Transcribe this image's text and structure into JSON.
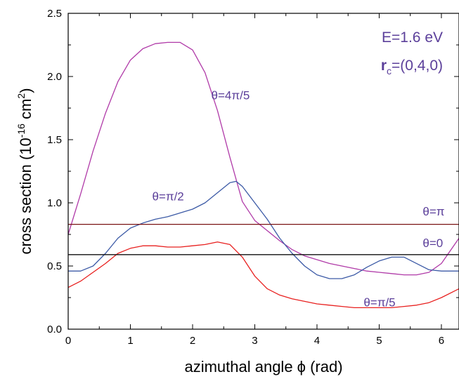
{
  "chart_data": {
    "type": "line",
    "xlabel": "azimuthal angle ϕ (rad)",
    "ylabel_parts": {
      "main": "cross section (10",
      "exp1": "-16",
      "mid": " cm",
      "exp2": "2",
      "end": ")"
    },
    "xlim": [
      0,
      6.283
    ],
    "ylim": [
      0,
      2.5
    ],
    "x_ticks": [
      "0",
      "1",
      "2",
      "3",
      "4",
      "5",
      "6"
    ],
    "y_ticks": [
      "0.0",
      "0.5",
      "1.0",
      "1.5",
      "2.0",
      "2.5"
    ],
    "info": {
      "energy": "E=1.6 eV",
      "rc_symbol": "r",
      "rc_sub": "c",
      "rc_value": "=(0,4,0)"
    },
    "series": [
      {
        "name": "θ=4π/5",
        "color": "#b03aa8",
        "x": [
          0,
          0.2,
          0.4,
          0.6,
          0.8,
          1.0,
          1.2,
          1.4,
          1.6,
          1.8,
          2.0,
          2.2,
          2.4,
          2.6,
          2.8,
          3.0,
          3.2,
          3.4,
          3.6,
          3.8,
          4.0,
          4.2,
          4.4,
          4.6,
          4.8,
          5.0,
          5.2,
          5.4,
          5.6,
          5.8,
          6.0,
          6.283
        ],
        "y": [
          0.75,
          1.07,
          1.41,
          1.71,
          1.96,
          2.13,
          2.22,
          2.26,
          2.27,
          2.27,
          2.21,
          2.03,
          1.73,
          1.36,
          1.01,
          0.86,
          0.78,
          0.7,
          0.63,
          0.58,
          0.55,
          0.52,
          0.5,
          0.48,
          0.46,
          0.45,
          0.44,
          0.43,
          0.43,
          0.45,
          0.52,
          0.72
        ]
      },
      {
        "name": "θ=π/2",
        "color": "#3c5aa6",
        "x": [
          0,
          0.2,
          0.4,
          0.6,
          0.8,
          1.0,
          1.2,
          1.4,
          1.6,
          1.8,
          2.0,
          2.2,
          2.4,
          2.6,
          2.7,
          2.8,
          3.0,
          3.2,
          3.4,
          3.6,
          3.8,
          4.0,
          4.2,
          4.4,
          4.6,
          4.8,
          5.0,
          5.2,
          5.4,
          5.6,
          5.8,
          6.0,
          6.283
        ],
        "y": [
          0.46,
          0.46,
          0.5,
          0.6,
          0.72,
          0.8,
          0.84,
          0.87,
          0.89,
          0.92,
          0.95,
          1.0,
          1.08,
          1.16,
          1.17,
          1.13,
          1.0,
          0.87,
          0.72,
          0.6,
          0.5,
          0.43,
          0.4,
          0.4,
          0.43,
          0.49,
          0.54,
          0.57,
          0.57,
          0.52,
          0.47,
          0.46,
          0.46
        ]
      },
      {
        "name": "θ=π/5",
        "color": "#e8201f",
        "x": [
          0,
          0.2,
          0.4,
          0.6,
          0.8,
          1.0,
          1.2,
          1.4,
          1.6,
          1.8,
          2.0,
          2.2,
          2.4,
          2.6,
          2.8,
          3.0,
          3.2,
          3.4,
          3.6,
          3.8,
          4.0,
          4.2,
          4.4,
          4.6,
          4.8,
          5.0,
          5.2,
          5.4,
          5.6,
          5.8,
          6.0,
          6.283
        ],
        "y": [
          0.33,
          0.38,
          0.45,
          0.52,
          0.6,
          0.64,
          0.66,
          0.66,
          0.65,
          0.65,
          0.66,
          0.67,
          0.69,
          0.67,
          0.57,
          0.42,
          0.32,
          0.27,
          0.24,
          0.22,
          0.2,
          0.19,
          0.18,
          0.17,
          0.17,
          0.17,
          0.17,
          0.18,
          0.19,
          0.21,
          0.25,
          0.32
        ]
      },
      {
        "name": "θ=π",
        "color": "#7a1414",
        "x": [
          0,
          6.283
        ],
        "y": [
          0.83,
          0.83
        ]
      },
      {
        "name": "θ=0",
        "color": "#111111",
        "x": [
          0,
          6.283
        ],
        "y": [
          0.59,
          0.59
        ]
      }
    ],
    "annotations": [
      {
        "text": "θ=4π/5",
        "at_x": 2.3,
        "at_y": 1.82
      },
      {
        "text": "θ=π/2",
        "at_x": 1.35,
        "at_y": 1.02
      },
      {
        "text": "θ=π",
        "at_x": 5.7,
        "at_y": 0.9
      },
      {
        "text": "θ=0",
        "at_x": 5.7,
        "at_y": 0.65
      },
      {
        "text": "θ=π/5",
        "at_x": 4.75,
        "at_y": 0.18
      }
    ]
  }
}
